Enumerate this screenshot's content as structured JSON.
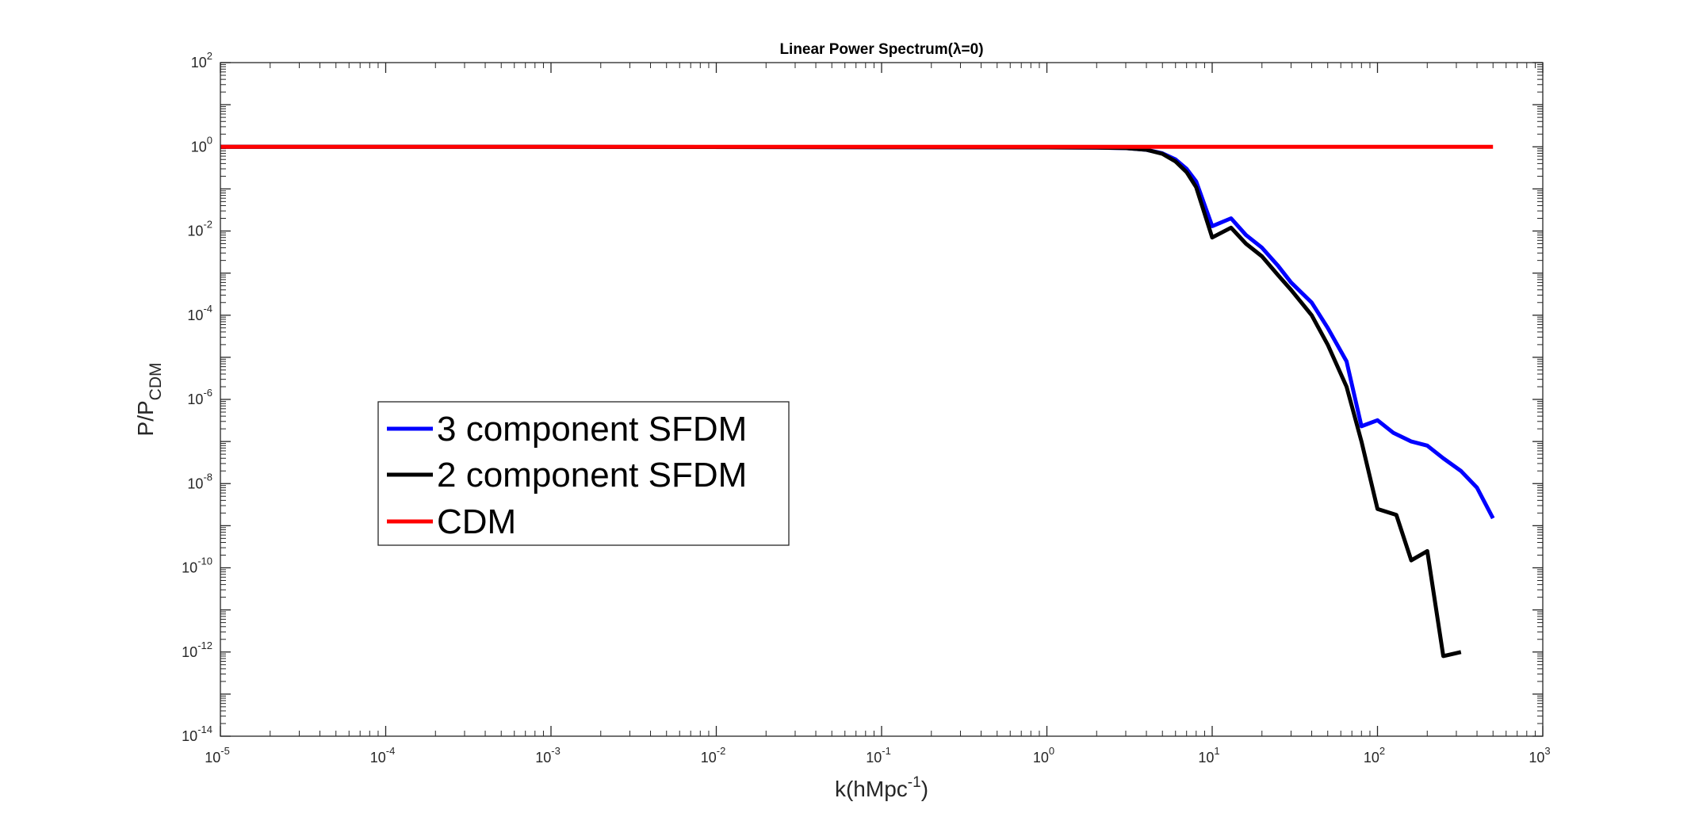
{
  "chart_data": {
    "type": "line",
    "title": "Linear Power Spectrum(λ=0)",
    "xlabel": "k(hMpc",
    "xlabel_sup": "-1",
    "xlabel_close": ")",
    "ylabel": "P/P",
    "ylabel_sub": "CDM",
    "xscale": "log",
    "yscale": "log",
    "xlim": [
      1e-05,
      1000
    ],
    "ylim": [
      1e-14,
      100
    ],
    "x_ticks": [
      {
        "base": "10",
        "exp": "-5",
        "value": 1e-05
      },
      {
        "base": "10",
        "exp": "-4",
        "value": 0.0001
      },
      {
        "base": "10",
        "exp": "-3",
        "value": 0.001
      },
      {
        "base": "10",
        "exp": "-2",
        "value": 0.01
      },
      {
        "base": "10",
        "exp": "-1",
        "value": 0.1
      },
      {
        "base": "10",
        "exp": "0",
        "value": 1
      },
      {
        "base": "10",
        "exp": "1",
        "value": 10
      },
      {
        "base": "10",
        "exp": "2",
        "value": 100
      },
      {
        "base": "10",
        "exp": "3",
        "value": 1000
      }
    ],
    "y_ticks": [
      {
        "base": "10",
        "exp": "-14",
        "value": 1e-14
      },
      {
        "base": "10",
        "exp": "-12",
        "value": 1e-12
      },
      {
        "base": "10",
        "exp": "-10",
        "value": 1e-10
      },
      {
        "base": "10",
        "exp": "-8",
        "value": 1e-08
      },
      {
        "base": "10",
        "exp": "-6",
        "value": 1e-06
      },
      {
        "base": "10",
        "exp": "-4",
        "value": 0.0001
      },
      {
        "base": "10",
        "exp": "-2",
        "value": 0.01
      },
      {
        "base": "10",
        "exp": "0",
        "value": 1
      },
      {
        "base": "10",
        "exp": "2",
        "value": 100
      }
    ],
    "grid": false,
    "legend_position": "center-left",
    "series": [
      {
        "name": "3 component SFDM",
        "color": "#0000ff",
        "x": [
          1e-05,
          0.001,
          0.1,
          1,
          2,
          3,
          4,
          5,
          6,
          7,
          8,
          10,
          13,
          16,
          20,
          25,
          30,
          40,
          50,
          65,
          80,
          100,
          125,
          160,
          200,
          250,
          320,
          400,
          500
        ],
        "y": [
          1.0,
          1.0,
          0.98,
          0.97,
          0.96,
          0.93,
          0.85,
          0.7,
          0.5,
          0.3,
          0.15,
          0.013,
          0.02,
          0.008,
          0.004,
          0.0015,
          0.0006,
          0.0002,
          5e-05,
          8e-06,
          2.3e-07,
          3.2e-07,
          1.6e-07,
          1e-07,
          8e-08,
          4e-08,
          2e-08,
          8e-09,
          1.5e-09
        ]
      },
      {
        "name": "2 component SFDM",
        "color": "#000000",
        "x": [
          1e-05,
          0.001,
          0.1,
          1,
          2,
          3,
          4,
          5,
          6,
          7,
          8,
          10,
          13,
          16,
          20,
          25,
          30,
          40,
          50,
          65,
          80,
          100,
          130,
          160,
          200,
          250,
          320
        ],
        "y": [
          1.0,
          1.0,
          0.98,
          0.97,
          0.96,
          0.93,
          0.85,
          0.68,
          0.45,
          0.25,
          0.11,
          0.007,
          0.012,
          0.005,
          0.0025,
          0.0009,
          0.0004,
          0.0001,
          2e-05,
          2e-06,
          1e-07,
          2.5e-09,
          1.8e-09,
          1.5e-10,
          2.5e-10,
          8e-13,
          1e-12
        ]
      },
      {
        "name": "CDM",
        "color": "#ff0000",
        "x": [
          1e-05,
          500
        ],
        "y": [
          1.0,
          1.0
        ]
      }
    ]
  }
}
